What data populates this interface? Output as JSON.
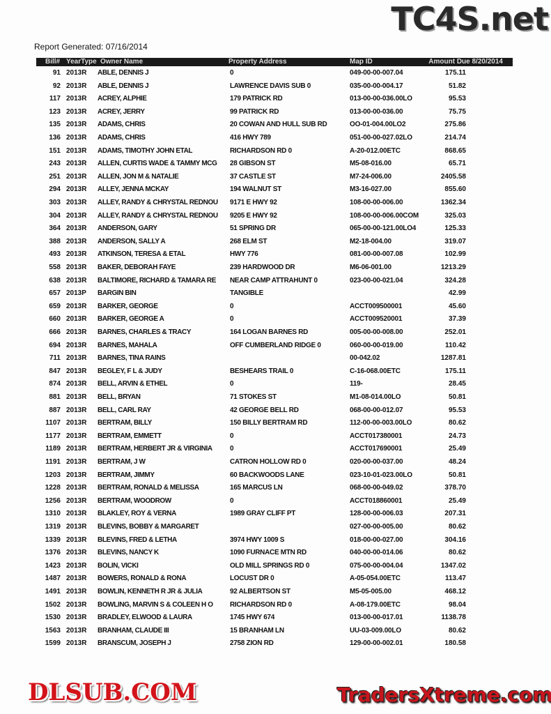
{
  "report_generated": "Report Generated: 07/16/2014",
  "watermarks": {
    "top": "TC4S.net",
    "middle": "DLSUB.COM",
    "bottom": "TradersXtreme.com"
  },
  "columns": {
    "bill": "Bill#",
    "year_type": "YearType",
    "owner": "Owner Name",
    "address": "Property Address",
    "map": "Map ID",
    "amount": "Amount Due 8/20/2014"
  },
  "rows": [
    [
      "91",
      "2013R",
      "ABLE, DENNIS J",
      "0",
      "049-00-00-007.04",
      "175.11"
    ],
    [
      "92",
      "2013R",
      "ABLE, DENNIS J",
      "LAWRENCE DAVIS SUB 0",
      "035-00-00-004.17",
      "51.82"
    ],
    [
      "117",
      "2013R",
      "ACREY, ALPHIE",
      "179 PATRICK RD",
      "013-00-00-036.00LO",
      "95.53"
    ],
    [
      "123",
      "2013R",
      "ACREY, JERRY",
      "99 PATRICK RD",
      "013-00-00-036.00",
      "75.75"
    ],
    [
      "135",
      "2013R",
      "ADAMS, CHRIS",
      "20 COWAN AND HULL SUB RD",
      "OO-01-004.00LO2",
      "275.86"
    ],
    [
      "136",
      "2013R",
      "ADAMS, CHRIS",
      "416 HWY 789",
      "051-00-00-027.02LO",
      "214.74"
    ],
    [
      "151",
      "2013R",
      "ADAMS, TIMOTHY JOHN ETAL",
      "RICHARDSON RD 0",
      "A-20-012.00ETC",
      "868.65"
    ],
    [
      "243",
      "2013R",
      "ALLEN, CURTIS WADE & TAMMY MCG",
      "28 GIBSON ST",
      "M5-08-016.00",
      "65.71"
    ],
    [
      "251",
      "2013R",
      "ALLEN, JON M & NATALIE",
      "37 CASTLE ST",
      "M7-24-006.00",
      "2405.58"
    ],
    [
      "294",
      "2013R",
      "ALLEY, JENNA MCKAY",
      "194 WALNUT ST",
      "M3-16-027.00",
      "855.60"
    ],
    [
      "303",
      "2013R",
      "ALLEY, RANDY & CHRYSTAL REDNOU",
      "9171 E HWY 92",
      "108-00-00-006.00",
      "1362.34"
    ],
    [
      "304",
      "2013R",
      "ALLEY, RANDY & CHRYSTAL REDNOU",
      "9205 E HWY 92",
      "108-00-00-006.00COM",
      "325.03"
    ],
    [
      "364",
      "2013R",
      "ANDERSON, GARY",
      "51 SPRING DR",
      "065-00-00-121.00LO4",
      "125.33"
    ],
    [
      "388",
      "2013R",
      "ANDERSON, SALLY A",
      "268 ELM ST",
      "M2-18-004.00",
      "319.07"
    ],
    [
      "493",
      "2013R",
      "ATKINSON, TERESA & ETAL",
      "HWY 776",
      "081-00-00-007.08",
      "102.99"
    ],
    [
      "558",
      "2013R",
      "BAKER, DEBORAH FAYE",
      "239 HARDWOOD DR",
      "M6-06-001.00",
      "1213.29"
    ],
    [
      "638",
      "2013R",
      "BALTIMORE, RICHARD & TAMARA RE",
      "NEAR CAMP ATTRAHUNT 0",
      "023-00-00-021.04",
      "324.28"
    ],
    [
      "657",
      "2013P",
      "BARGIN BIN",
      "TANGIBLE",
      "",
      "42.99"
    ],
    [
      "659",
      "2013R",
      "BARKER, GEORGE",
      "0",
      "ACCT009500001",
      "45.60"
    ],
    [
      "660",
      "2013R",
      "BARKER, GEORGE A",
      "0",
      "ACCT009520001",
      "37.39"
    ],
    [
      "666",
      "2013R",
      "BARNES, CHARLES & TRACY",
      "164 LOGAN BARNES RD",
      "005-00-00-008.00",
      "252.01"
    ],
    [
      "694",
      "2013R",
      "BARNES, MAHALA",
      "OFF CUMBERLAND RIDGE 0",
      "060-00-00-019.00",
      "110.42"
    ],
    [
      "711",
      "2013R",
      "BARNES, TINA RAINS",
      "",
      "00-042.02",
      "1287.81"
    ],
    [
      "847",
      "2013R",
      "BEGLEY, F L & JUDY",
      "BESHEARS TRAIL 0",
      "C-16-068.00ETC",
      "175.11"
    ],
    [
      "874",
      "2013R",
      "BELL, ARVIN & ETHEL",
      "0",
      "119-",
      "28.45"
    ],
    [
      "881",
      "2013R",
      "BELL, BRYAN",
      "71 STOKES ST",
      "M1-08-014.00LO",
      "50.81"
    ],
    [
      "887",
      "2013R",
      "BELL, CARL RAY",
      "42 GEORGE BELL RD",
      "068-00-00-012.07",
      "95.53"
    ],
    [
      "1107",
      "2013R",
      "BERTRAM, BILLY",
      "150 BILLY BERTRAM RD",
      "112-00-00-003.00LO",
      "80.62"
    ],
    [
      "1177",
      "2013R",
      "BERTRAM, EMMETT",
      "0",
      "ACCT017380001",
      "24.73"
    ],
    [
      "1189",
      "2013R",
      "BERTRAM, HERBERT JR & VIRGINIA",
      "0",
      "ACCT017690001",
      "25.49"
    ],
    [
      "1191",
      "2013R",
      "BERTRAM, J W",
      "CATRON HOLLOW RD 0",
      "020-00-00-037.00",
      "48.24"
    ],
    [
      "1203",
      "2013R",
      "BERTRAM, JIMMY",
      "60 BACKWOODS LANE",
      "023-10-01-023.00LO",
      "50.81"
    ],
    [
      "1228",
      "2013R",
      "BERTRAM, RONALD & MELISSA",
      "165 MARCUS LN",
      "068-00-00-049.02",
      "378.70"
    ],
    [
      "1256",
      "2013R",
      "BERTRAM, WOODROW",
      "0",
      "ACCT018860001",
      "25.49"
    ],
    [
      "1310",
      "2013R",
      "BLAKLEY, ROY & VERNA",
      "1989 GRAY CLIFF PT",
      "128-00-00-006.03",
      "207.31"
    ],
    [
      "1319",
      "2013R",
      "BLEVINS, BOBBY & MARGARET",
      "",
      "027-00-00-005.00",
      "80.62"
    ],
    [
      "1339",
      "2013R",
      "BLEVINS, FRED & LETHA",
      "3974 HWY 1009 S",
      "018-00-00-027.00",
      "304.16"
    ],
    [
      "1376",
      "2013R",
      "BLEVINS, NANCY K",
      "1090 FURNACE MTN RD",
      "040-00-00-014.06",
      "80.62"
    ],
    [
      "1423",
      "2013R",
      "BOLIN, VICKI",
      "OLD MILL SPRINGS RD 0",
      "075-00-00-004.04",
      "1347.02"
    ],
    [
      "1487",
      "2013R",
      "BOWERS, RONALD & RONA",
      "LOCUST DR 0",
      "A-05-054.00ETC",
      "113.47"
    ],
    [
      "1491",
      "2013R",
      "BOWLIN, KENNETH R JR & JULIA",
      "92 ALBERTSON ST",
      "M5-05-005.00",
      "468.12"
    ],
    [
      "1502",
      "2013R",
      "BOWLING, MARVIN S & COLEEN H O",
      "RICHARDSON RD 0",
      "A-08-179.00ETC",
      "98.04"
    ],
    [
      "1530",
      "2013R",
      "BRADLEY, ELWOOD & LAURA",
      "1745 HWY 674",
      "013-00-00-017.01",
      "1138.78"
    ],
    [
      "1563",
      "2013R",
      "BRANHAM, CLAUDE III",
      "15 BRANHAM LN",
      "UU-03-009.00LO",
      "80.62"
    ],
    [
      "1599",
      "2013R",
      "BRANSCUM, JOSEPH J",
      "2758 ZION RD",
      "129-00-00-002.01",
      "180.58"
    ]
  ]
}
